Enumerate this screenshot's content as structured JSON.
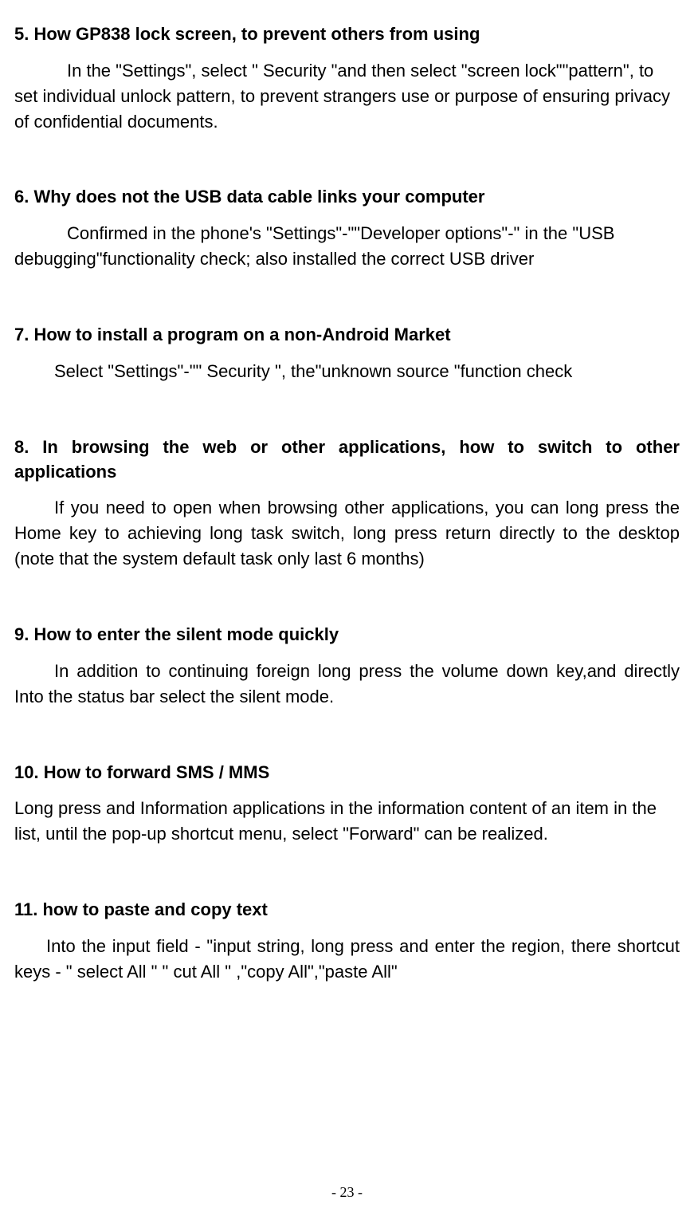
{
  "sections": [
    {
      "heading": "5. How GP838 lock screen, to prevent others from using",
      "body": "In the \"Settings\", select \" Security \"and then select \"screen lock\"\"pattern\", to set individual unlock pattern, to prevent strangers use or purpose of ensuring privacy of confidential documents.",
      "indent": "indent-large",
      "justify": false,
      "headingJustify": false
    },
    {
      "heading": "6. Why does not the USB data cable links your computer",
      "body": "Confirmed in the phone's \"Settings\"-\"\"Developer options\"-\"    in the \"USB debugging\"functionality check; also installed the correct USB driver",
      "indent": "indent-large",
      "justify": false,
      "headingJustify": false
    },
    {
      "heading": "7. How to install a program on a non-Android Market",
      "body": "Select \"Settings\"-\"\" Security \", the\"unknown source \"function check",
      "indent": "indent-medium",
      "justify": false,
      "headingJustify": false
    },
    {
      "heading": "8. In browsing the web or other applications, how to switch to other applications",
      "body": "If you need to open when browsing other applications, you can long press the Home key to achieving long task switch, long press return directly to the desktop (note that the system default task only last 6 months)",
      "indent": "indent-medium",
      "justify": true,
      "headingJustify": true
    },
    {
      "heading": "9. How to enter the silent mode quickly",
      "body": "In addition to continuing foreign long press the volume down key,and directly Into the status bar select the silent mode.",
      "indent": "indent-medium",
      "justify": true,
      "headingJustify": false
    },
    {
      "heading": "10. How to forward SMS / MMS",
      "body": "Long press and Information applications in the information content of an item in the list, until the pop-up shortcut menu, select \"Forward\" can be realized.",
      "indent": "",
      "justify": false,
      "headingJustify": false
    },
    {
      "heading": "11. how to paste and copy text",
      "body": "Into the input field - \"input string, long press and enter the region, there shortcut keys - \" select All \" \" cut All \" ,\"copy All\",\"paste All\"",
      "indent": "indent-small",
      "justify": true,
      "headingJustify": false
    }
  ],
  "pageNumber": "- 23 -",
  "style": {
    "bodyFontSize": 22,
    "headingFontSize": 22,
    "textColor": "#000000",
    "backgroundColor": "#ffffff"
  }
}
